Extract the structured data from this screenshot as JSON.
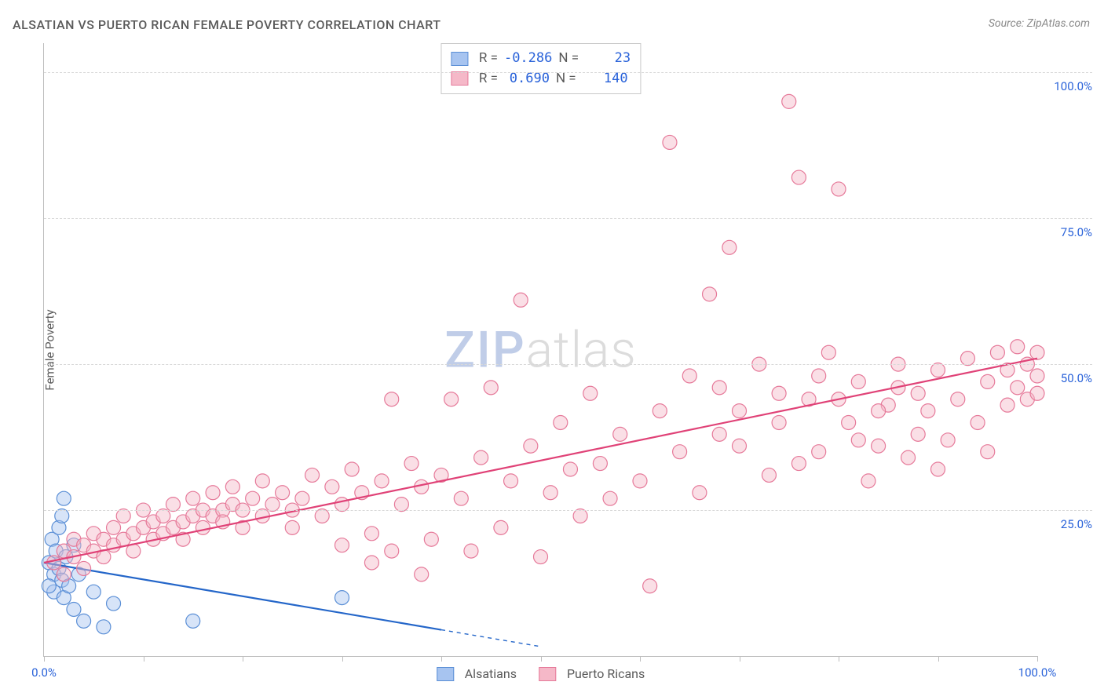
{
  "title": "ALSATIAN VS PUERTO RICAN FEMALE POVERTY CORRELATION CHART",
  "source": "Source: ZipAtlas.com",
  "ylabel": "Female Poverty",
  "watermark": {
    "part1": "ZIP",
    "part2": "atlas"
  },
  "chart": {
    "type": "scatter",
    "xlim": [
      0,
      100
    ],
    "ylim": [
      0,
      105
    ],
    "ytick_values": [
      25,
      50,
      75,
      100
    ],
    "ytick_labels": [
      "25.0%",
      "50.0%",
      "75.0%",
      "100.0%"
    ],
    "xtick_values": [
      0,
      10,
      20,
      30,
      40,
      50,
      60,
      70,
      80,
      90,
      100
    ],
    "xtick_labels": {
      "0": "0.0%",
      "100": "100.0%"
    },
    "grid_color": "#d8d8d8",
    "axis_color": "#bdbdbd",
    "tick_label_color": "#2962d9",
    "background_color": "#ffffff",
    "marker_radius": 9,
    "marker_opacity": 0.45,
    "line_width": 2.2
  },
  "series": [
    {
      "name": "Alsatians",
      "color_fill": "#a7c4f0",
      "color_stroke": "#5b8fd6",
      "line_color": "#2466c9",
      "R": "-0.286",
      "N": "23",
      "trend": {
        "x1": 0,
        "y1": 16,
        "x2": 40,
        "y2": 4.5,
        "dash_to_x": 50
      },
      "points": [
        [
          0.5,
          16
        ],
        [
          0.8,
          20
        ],
        [
          1,
          14
        ],
        [
          1,
          11
        ],
        [
          1.2,
          18
        ],
        [
          1.5,
          15
        ],
        [
          1.5,
          22
        ],
        [
          1.8,
          13
        ],
        [
          2,
          10
        ],
        [
          2,
          27
        ],
        [
          2.2,
          17
        ],
        [
          2.5,
          12
        ],
        [
          3,
          8
        ],
        [
          3,
          19
        ],
        [
          3.5,
          14
        ],
        [
          4,
          6
        ],
        [
          5,
          11
        ],
        [
          6,
          5
        ],
        [
          7,
          9
        ],
        [
          0.5,
          12
        ],
        [
          1.8,
          24
        ],
        [
          15,
          6
        ],
        [
          30,
          10
        ]
      ]
    },
    {
      "name": "Puerto Ricans",
      "color_fill": "#f5b8c8",
      "color_stroke": "#e67a9a",
      "line_color": "#e04277",
      "R": "0.690",
      "N": "140",
      "trend": {
        "x1": 0,
        "y1": 16,
        "x2": 100,
        "y2": 51
      },
      "points": [
        [
          1,
          16
        ],
        [
          2,
          14
        ],
        [
          2,
          18
        ],
        [
          3,
          17
        ],
        [
          3,
          20
        ],
        [
          4,
          19
        ],
        [
          4,
          15
        ],
        [
          5,
          18
        ],
        [
          5,
          21
        ],
        [
          6,
          20
        ],
        [
          6,
          17
        ],
        [
          7,
          19
        ],
        [
          7,
          22
        ],
        [
          8,
          20
        ],
        [
          8,
          24
        ],
        [
          9,
          21
        ],
        [
          9,
          18
        ],
        [
          10,
          22
        ],
        [
          10,
          25
        ],
        [
          11,
          20
        ],
        [
          11,
          23
        ],
        [
          12,
          24
        ],
        [
          12,
          21
        ],
        [
          13,
          22
        ],
        [
          13,
          26
        ],
        [
          14,
          23
        ],
        [
          14,
          20
        ],
        [
          15,
          24
        ],
        [
          15,
          27
        ],
        [
          16,
          25
        ],
        [
          16,
          22
        ],
        [
          17,
          24
        ],
        [
          17,
          28
        ],
        [
          18,
          25
        ],
        [
          18,
          23
        ],
        [
          19,
          26
        ],
        [
          19,
          29
        ],
        [
          20,
          25
        ],
        [
          20,
          22
        ],
        [
          21,
          27
        ],
        [
          22,
          24
        ],
        [
          22,
          30
        ],
        [
          23,
          26
        ],
        [
          24,
          28
        ],
        [
          25,
          25
        ],
        [
          25,
          22
        ],
        [
          26,
          27
        ],
        [
          27,
          31
        ],
        [
          28,
          24
        ],
        [
          29,
          29
        ],
        [
          30,
          26
        ],
        [
          30,
          19
        ],
        [
          31,
          32
        ],
        [
          32,
          28
        ],
        [
          33,
          21
        ],
        [
          33,
          16
        ],
        [
          34,
          30
        ],
        [
          35,
          18
        ],
        [
          35,
          44
        ],
        [
          36,
          26
        ],
        [
          37,
          33
        ],
        [
          38,
          14
        ],
        [
          38,
          29
        ],
        [
          39,
          20
        ],
        [
          40,
          31
        ],
        [
          41,
          44
        ],
        [
          42,
          27
        ],
        [
          43,
          18
        ],
        [
          44,
          34
        ],
        [
          45,
          46
        ],
        [
          46,
          22
        ],
        [
          47,
          30
        ],
        [
          48,
          61
        ],
        [
          49,
          36
        ],
        [
          50,
          17
        ],
        [
          51,
          28
        ],
        [
          52,
          40
        ],
        [
          53,
          32
        ],
        [
          54,
          24
        ],
        [
          55,
          45
        ],
        [
          56,
          33
        ],
        [
          57,
          27
        ],
        [
          58,
          38
        ],
        [
          60,
          30
        ],
        [
          61,
          12
        ],
        [
          62,
          42
        ],
        [
          63,
          88
        ],
        [
          64,
          35
        ],
        [
          66,
          28
        ],
        [
          67,
          62
        ],
        [
          68,
          46
        ],
        [
          69,
          70
        ],
        [
          70,
          36
        ],
        [
          72,
          50
        ],
        [
          73,
          31
        ],
        [
          74,
          40
        ],
        [
          75,
          95
        ],
        [
          76,
          82
        ],
        [
          77,
          44
        ],
        [
          78,
          35
        ],
        [
          79,
          52
        ],
        [
          80,
          80
        ],
        [
          81,
          40
        ],
        [
          82,
          47
        ],
        [
          83,
          30
        ],
        [
          84,
          36
        ],
        [
          85,
          43
        ],
        [
          86,
          50
        ],
        [
          87,
          34
        ],
        [
          88,
          45
        ],
        [
          89,
          42
        ],
        [
          90,
          49
        ],
        [
          91,
          37
        ],
        [
          92,
          44
        ],
        [
          93,
          51
        ],
        [
          94,
          40
        ],
        [
          95,
          47
        ],
        [
          96,
          52
        ],
        [
          97,
          43
        ],
        [
          97,
          49
        ],
        [
          98,
          46
        ],
        [
          98,
          53
        ],
        [
          99,
          50
        ],
        [
          99,
          44
        ],
        [
          100,
          48
        ],
        [
          100,
          52
        ],
        [
          100,
          45
        ],
        [
          95,
          35
        ],
        [
          90,
          32
        ],
        [
          88,
          38
        ],
        [
          86,
          46
        ],
        [
          84,
          42
        ],
        [
          82,
          37
        ],
        [
          80,
          44
        ],
        [
          78,
          48
        ],
        [
          76,
          33
        ],
        [
          74,
          45
        ],
        [
          70,
          42
        ],
        [
          68,
          38
        ],
        [
          65,
          48
        ]
      ]
    }
  ],
  "stats_box": {
    "rows": [
      {
        "swatch_fill": "#a7c4f0",
        "swatch_stroke": "#5b8fd6",
        "r_label": "R =",
        "r_val": "-0.286",
        "n_label": "N =",
        "n_val": "23"
      },
      {
        "swatch_fill": "#f5b8c8",
        "swatch_stroke": "#e67a9a",
        "r_label": "R =",
        "r_val": "0.690",
        "n_label": "N =",
        "n_val": "140"
      }
    ]
  },
  "bottom_legend": [
    {
      "swatch_fill": "#a7c4f0",
      "swatch_stroke": "#5b8fd6",
      "label": "Alsatians"
    },
    {
      "swatch_fill": "#f5b8c8",
      "swatch_stroke": "#e67a9a",
      "label": "Puerto Ricans"
    }
  ]
}
